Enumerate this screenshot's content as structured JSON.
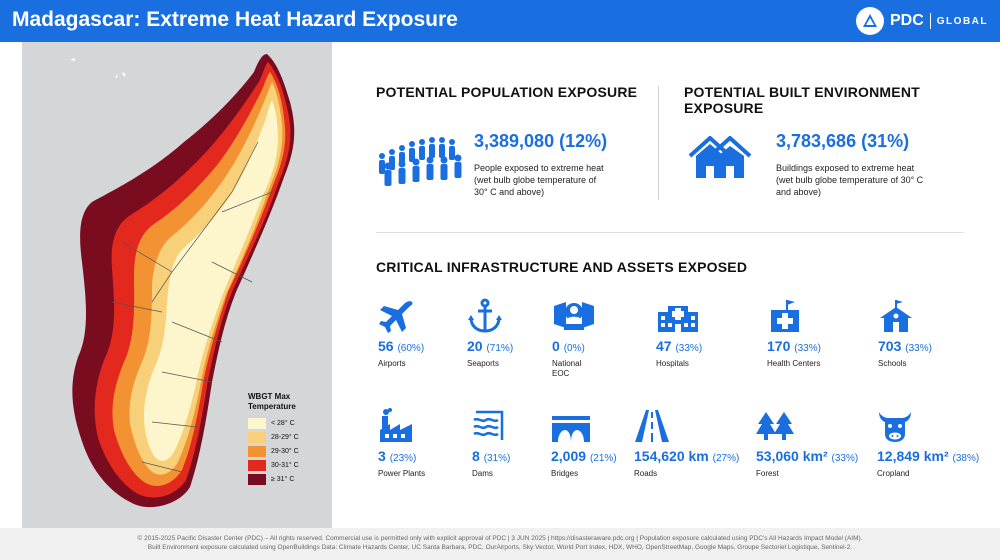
{
  "header": {
    "title": "Madagascar: Extreme Heat Hazard Exposure",
    "logo_text": "PDC",
    "logo_sub": "GLOBAL"
  },
  "colors": {
    "accent": "#1a6fe0",
    "lt28": "#fdf6cc",
    "c28_29": "#f9d07a",
    "c29_30": "#f39233",
    "c30_31": "#e3281d",
    "ge31": "#7a0c20"
  },
  "legend": {
    "title_1": "WBGT Max",
    "title_2": "Temperature",
    "items": [
      {
        "label": "< 28° C"
      },
      {
        "label": "28-29° C"
      },
      {
        "label": "29-30° C"
      },
      {
        "label": "30-31° C"
      },
      {
        "label": "≥ 31° C"
      }
    ]
  },
  "population": {
    "heading": "POTENTIAL POPULATION EXPOSURE",
    "value": "3,389,080 (12%)",
    "desc_1": "People exposed to extreme heat",
    "desc_2": "(wet bulb globe temperature of",
    "desc_3": "30° C and above)",
    "icon": "people-crowd-icon"
  },
  "built": {
    "heading": "POTENTIAL BUILT ENVIRONMENT EXPOSURE",
    "value": "3,783,686 (31%)",
    "desc_1": "Buildings exposed to extreme heat",
    "desc_2": "(wet bulb globe temperature of 30° C",
    "desc_3": "and above)",
    "icon": "houses-icon"
  },
  "infra": {
    "heading": "CRITICAL INFRASTRUCTURE AND ASSETS EXPOSED",
    "airports": {
      "value": "56",
      "pct": "(60%)",
      "label": "Airports",
      "icon": "airplane-icon"
    },
    "seaports": {
      "value": "20",
      "pct": "(71%)",
      "label": "Seaports",
      "icon": "anchor-icon"
    },
    "eoc": {
      "value": "0",
      "pct": "(0%)",
      "label_1": "National",
      "label_2": "EOC",
      "icon": "eoc-icon"
    },
    "hospitals": {
      "value": "47",
      "pct": "(33%)",
      "label": "Hospitals",
      "icon": "hospital-icon"
    },
    "health": {
      "value": "170",
      "pct": "(33%)",
      "label": "Health Centers",
      "icon": "health-center-icon"
    },
    "schools": {
      "value": "703",
      "pct": "(33%)",
      "label": "Schools",
      "icon": "school-icon"
    },
    "power": {
      "value": "3",
      "pct": "(23%)",
      "label": "Power Plants",
      "icon": "power-plant-icon"
    },
    "dams": {
      "value": "8",
      "pct": "(31%)",
      "label": "Dams",
      "icon": "dam-icon"
    },
    "bridges": {
      "value": "2,009",
      "pct": "(21%)",
      "label": "Bridges",
      "icon": "bridge-icon"
    },
    "roads": {
      "value": "154,620 km",
      "pct": "(27%)",
      "label": "Roads",
      "icon": "road-icon"
    },
    "forest": {
      "value": "53,060 km²",
      "pct": "(33%)",
      "label": "Forest",
      "icon": "forest-icon"
    },
    "cropland": {
      "value": "12,849 km²",
      "pct": "(38%)",
      "label": "Cropland",
      "icon": "cow-icon"
    }
  },
  "footer": {
    "line1": "© 2015-2025 Pacific Disaster Center (PDC) – All rights reserved. Commercial use is permitted only with explicit approval of PDC | 3 JUN 2025 | https://disasteraware.pdc.org | Population exposure calculated using PDC's All Hazards Impact Model (AIM).",
    "line2": "Built Environment exposure calculated using OpenBuildings Data: Climate Hazards Center, UC Santa Barbara, PDC, OurAirports, Sky Vector, World Port Index, HDX, WHO, OpenStreetMap, Google Maps, Groupe Sectoriel Logistique, Sentinel-2."
  }
}
